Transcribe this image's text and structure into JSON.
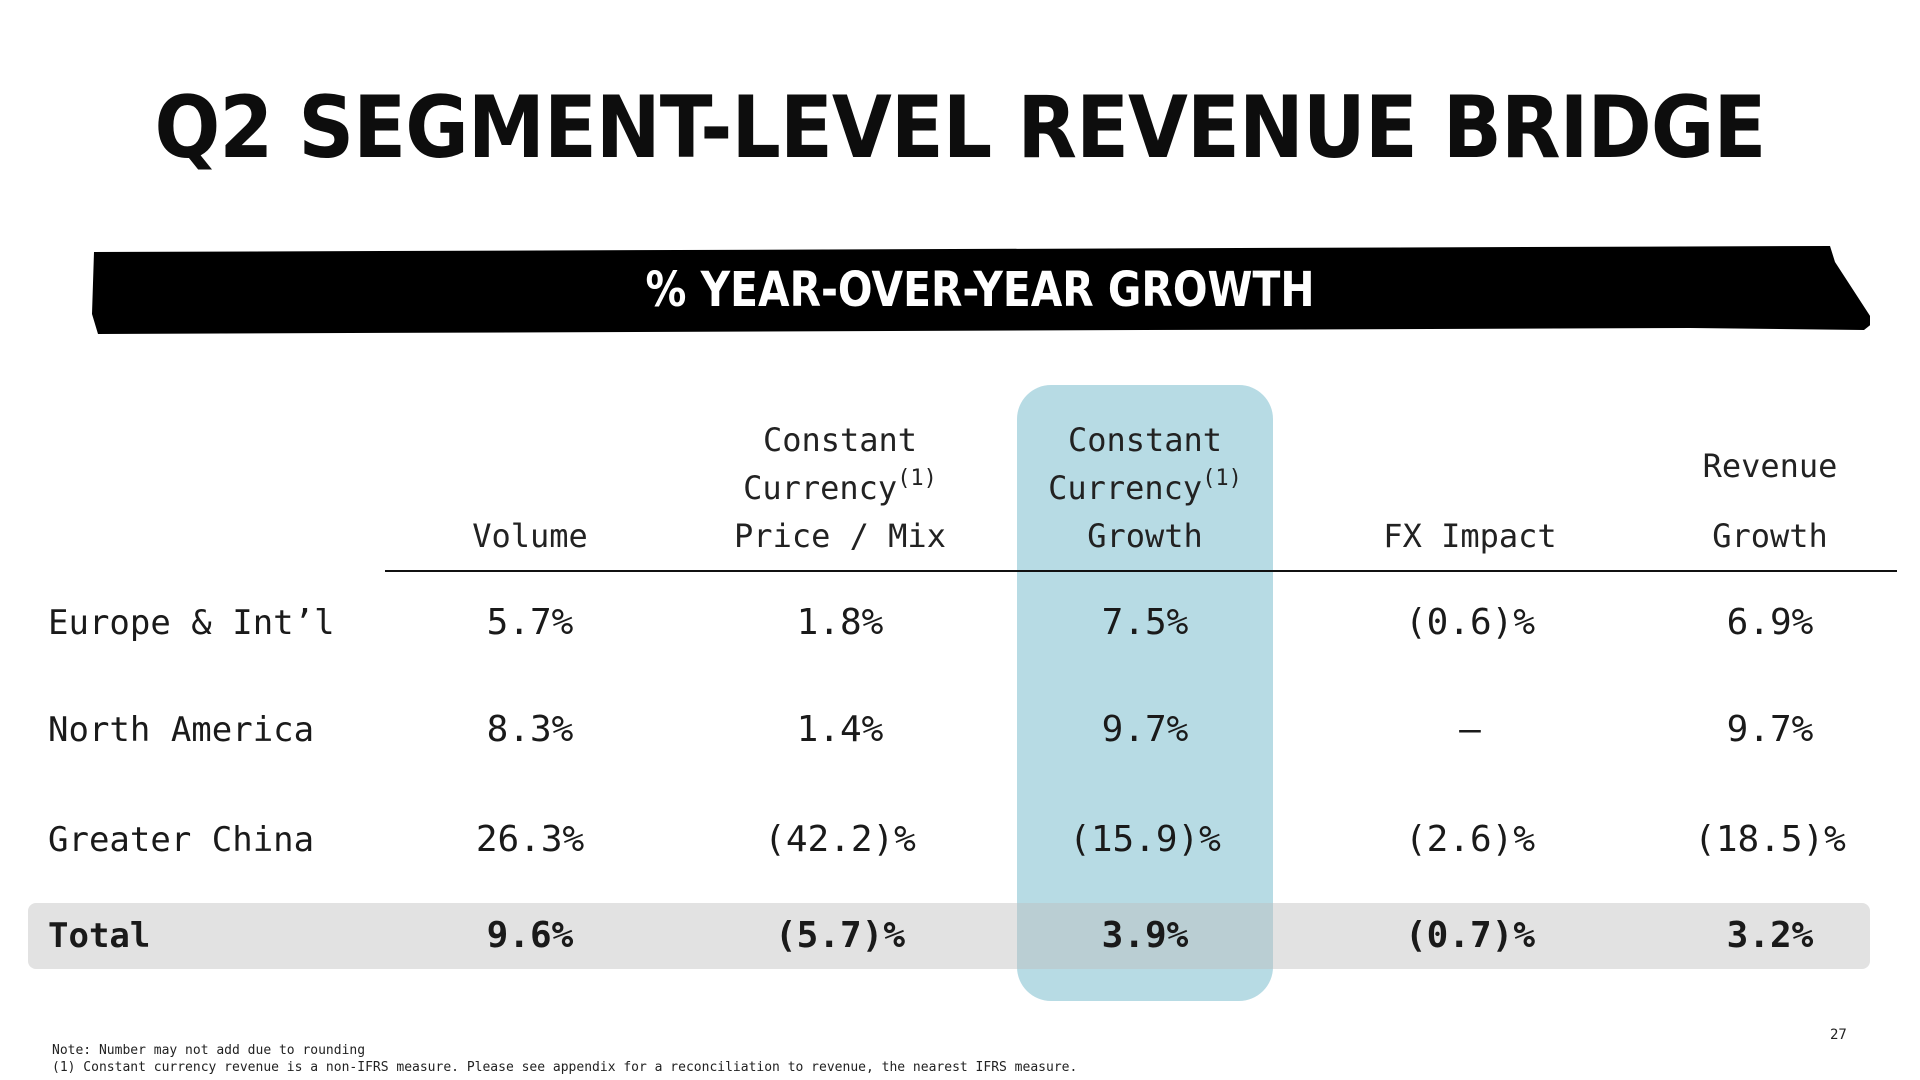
{
  "title": "Q2 SEGMENT-LEVEL REVENUE BRIDGE",
  "banner": "% YEAR-OVER-YEAR GROWTH",
  "columns": [
    {
      "line1": "",
      "line2": "",
      "line3": "Volume"
    },
    {
      "line1": "Constant",
      "line2": "Currency",
      "sup": "(1)",
      "line3": "Price / Mix"
    },
    {
      "line1": "Constant",
      "line2": "Currency",
      "sup": "(1)",
      "line3": "Growth"
    },
    {
      "line1": "",
      "line2": "",
      "line3": "FX Impact"
    },
    {
      "line1": "",
      "line2": "Revenue",
      "line3": "Growth"
    }
  ],
  "rows": [
    {
      "label": "Europe & Int’l",
      "values": [
        "5.7%",
        "1.8%",
        "7.5%",
        "(0.6)%",
        "6.9%"
      ]
    },
    {
      "label": "North America",
      "values": [
        "8.3%",
        "1.4%",
        "9.7%",
        "–",
        "9.7%"
      ]
    },
    {
      "label": "Greater China",
      "values": [
        "26.3%",
        "(42.2)%",
        "(15.9)%",
        "(2.6)%",
        "(18.5)%"
      ]
    },
    {
      "label": "Total",
      "values": [
        "9.6%",
        "(5.7)%",
        "3.9%",
        "(0.7)%",
        "3.2%"
      ]
    }
  ],
  "notes": {
    "line1": "Note: Number may not add due to rounding",
    "line2": "(1) Constant currency revenue is a non-IFRS measure.  Please see appendix for a reconciliation to revenue, the nearest IFRS measure."
  },
  "page_number": "27",
  "colors": {
    "highlight": "#b7dbe4",
    "banner": "#000000",
    "total_row": "#e3e3e3"
  }
}
